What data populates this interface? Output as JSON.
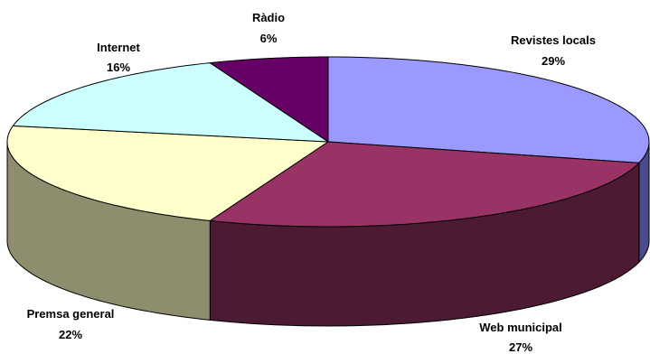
{
  "chart_data": {
    "type": "pie",
    "three_d": true,
    "slices": [
      {
        "label": "Revistes locals",
        "value": 29,
        "value_label": "29%",
        "color": "#9999ff",
        "side_color": "#4a4a8c"
      },
      {
        "label": "Web municipal",
        "value": 27,
        "value_label": "27%",
        "color": "#993366",
        "side_color": "#4d1a33"
      },
      {
        "label": "Premsa general",
        "value": 22,
        "value_label": "22%",
        "color": "#ffffcc",
        "side_color": "#8e8e6e"
      },
      {
        "label": "Internet",
        "value": 16,
        "value_label": "16%",
        "color": "#ccffff",
        "side_color": "#6e8e8e"
      },
      {
        "label": "Ràdio",
        "value": 6,
        "value_label": "6%",
        "color": "#660066",
        "side_color": "#330033"
      }
    ]
  }
}
